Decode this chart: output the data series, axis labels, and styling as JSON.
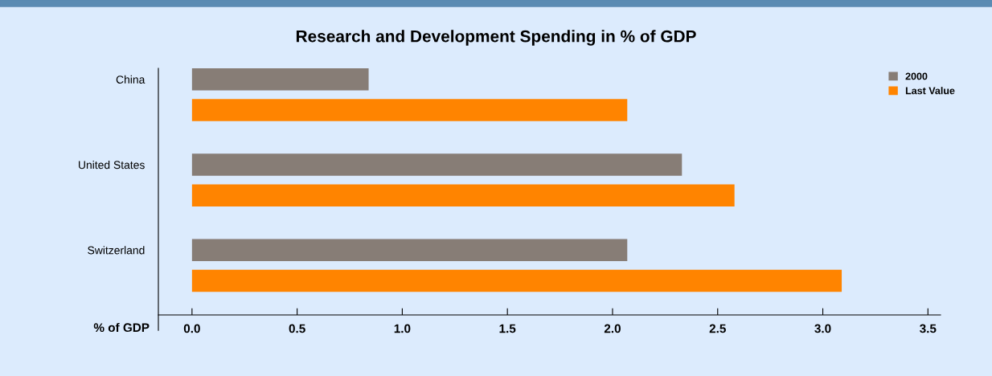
{
  "chart_data": {
    "type": "bar",
    "orientation": "horizontal",
    "title": "Research and Development Spending in % of GDP",
    "xlabel": "% of GDP",
    "categories": [
      "China",
      "United States",
      "Switzerland"
    ],
    "series": [
      {
        "name": "2000",
        "color": "#877d76",
        "values": [
          0.84,
          2.33,
          2.07
        ]
      },
      {
        "name": "Last Value",
        "color": "#ff8400",
        "values": [
          2.07,
          2.58,
          3.09
        ]
      }
    ],
    "xlim": [
      -0.16,
      3.56
    ],
    "xticks": [
      {
        "value": 0,
        "label": "0.0"
      },
      0.5,
      {
        "value": 1,
        "label": "1.0"
      },
      1.5,
      {
        "value": 2,
        "label": "2.0"
      },
      2.5,
      {
        "value": 3,
        "label": "3.0"
      },
      3.5
    ],
    "grid": false,
    "legend": "top right"
  }
}
